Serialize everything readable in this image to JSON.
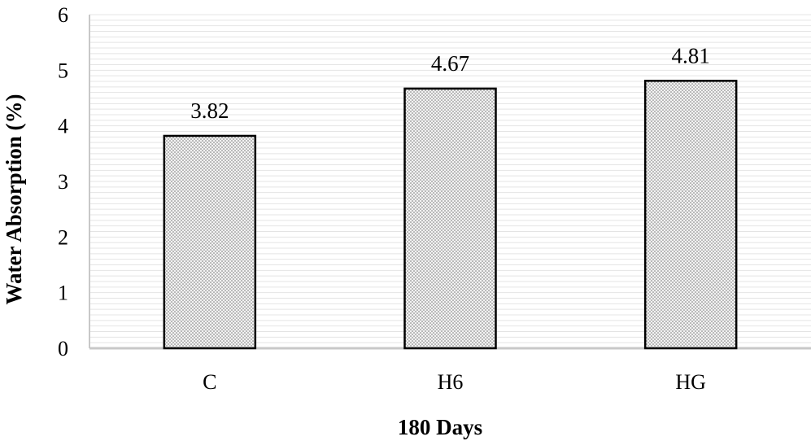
{
  "chart_data": {
    "type": "bar",
    "categories": [
      "C",
      "H6",
      "HG"
    ],
    "values": [
      3.82,
      4.67,
      4.81
    ],
    "data_labels": [
      "3.82",
      "4.67",
      "4.81"
    ],
    "title": "",
    "xlabel": "180 Days",
    "ylabel": "Water Absorption (%)",
    "ylim": [
      0,
      6
    ],
    "yticks": [
      "0",
      "1",
      "2",
      "3",
      "4",
      "5",
      "6"
    ],
    "grid": true,
    "bar_fill": "dotted-gray",
    "bar_stroke": "#000000",
    "axis_color": "#c8c8c8",
    "grid_color": "#e4e4e4"
  }
}
